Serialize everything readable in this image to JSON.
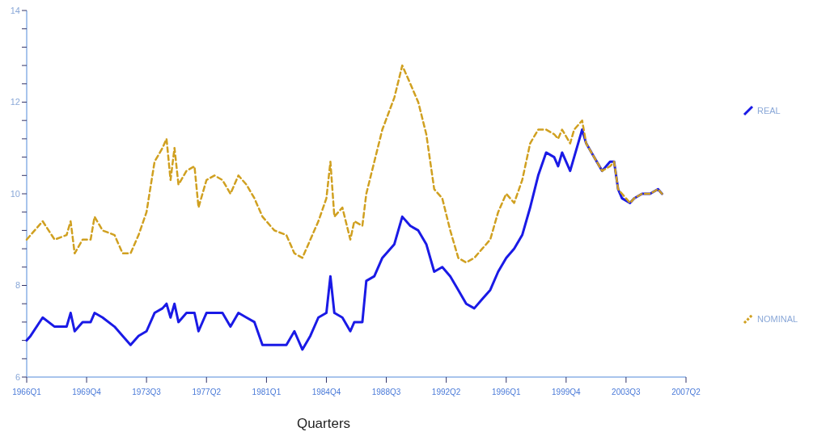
{
  "chart_data": {
    "type": "line",
    "xlabel": "Quarters",
    "x": [
      "1966-01",
      "1966-04",
      "1967-01",
      "1967-10",
      "1968-07",
      "1968-10",
      "1969-01",
      "1969-07",
      "1970-01",
      "1970-04",
      "1970-10",
      "1971-07",
      "1972-01",
      "1972-07",
      "1973-01",
      "1973-07",
      "1974-01",
      "1974-07",
      "1974-10",
      "1975-01",
      "1975-04",
      "1975-07",
      "1976-01",
      "1976-07",
      "1976-10",
      "1977-04",
      "1977-10",
      "1978-04",
      "1978-10",
      "1979-04",
      "1979-10",
      "1980-04",
      "1980-10",
      "1981-07",
      "1982-04",
      "1982-10",
      "1983-04",
      "1983-10",
      "1984-04",
      "1984-10",
      "1985-01",
      "1985-04",
      "1985-10",
      "1986-04",
      "1986-07",
      "1987-01",
      "1987-04",
      "1987-10",
      "1988-04",
      "1989-01",
      "1989-07",
      "1990-01",
      "1990-07",
      "1991-01",
      "1991-07",
      "1992-01",
      "1992-07",
      "1993-01",
      "1993-07",
      "1994-01",
      "1994-07",
      "1995-01",
      "1995-07",
      "1996-01",
      "1996-07",
      "1997-01",
      "1997-07",
      "1998-01",
      "1998-07",
      "1999-01",
      "1999-04",
      "1999-07",
      "2000-01",
      "2000-04",
      "2000-10",
      "2001-01",
      "2001-07",
      "2002-01",
      "2002-07",
      "2002-10",
      "2003-01",
      "2003-04",
      "2003-10",
      "2004-01",
      "2004-07",
      "2005-01",
      "2005-07",
      "2005-10"
    ],
    "series": [
      {
        "name": "REAL",
        "color": "#1a1ae6",
        "line_style": "solid",
        "values": [
          6.8,
          6.9,
          7.3,
          7.1,
          7.1,
          7.4,
          7.0,
          7.2,
          7.2,
          7.4,
          7.3,
          7.1,
          6.9,
          6.7,
          6.9,
          7.0,
          7.4,
          7.5,
          7.6,
          7.3,
          7.6,
          7.2,
          7.4,
          7.4,
          7.0,
          7.4,
          7.4,
          7.4,
          7.1,
          7.4,
          7.3,
          7.2,
          6.7,
          6.7,
          6.7,
          7.0,
          6.6,
          6.9,
          7.3,
          7.4,
          8.2,
          7.4,
          7.3,
          7.0,
          7.2,
          7.2,
          8.1,
          8.2,
          8.6,
          8.9,
          9.5,
          9.3,
          9.2,
          8.9,
          8.3,
          8.4,
          8.2,
          7.9,
          7.6,
          7.5,
          7.7,
          7.9,
          8.3,
          8.6,
          8.8,
          9.1,
          9.7,
          10.4,
          10.9,
          10.8,
          10.6,
          10.9,
          10.5,
          10.8,
          11.4,
          11.1,
          10.8,
          10.5,
          10.7,
          10.7,
          10.1,
          9.9,
          9.8,
          9.9,
          10.0,
          10.0,
          10.1,
          10.0
        ]
      },
      {
        "name": "NOMINAL",
        "color": "#d0a020",
        "line_style": "dashed",
        "values": [
          9.0,
          9.1,
          9.4,
          9.0,
          9.1,
          9.4,
          8.7,
          9.0,
          9.0,
          9.5,
          9.2,
          9.1,
          8.7,
          8.7,
          9.1,
          9.6,
          10.7,
          11.0,
          11.2,
          10.3,
          11.0,
          10.2,
          10.5,
          10.6,
          9.7,
          10.3,
          10.4,
          10.3,
          10.0,
          10.4,
          10.2,
          9.9,
          9.5,
          9.2,
          9.1,
          8.7,
          8.6,
          9.0,
          9.4,
          9.9,
          10.7,
          9.5,
          9.7,
          9.0,
          9.4,
          9.3,
          10.0,
          10.7,
          11.4,
          12.1,
          12.8,
          12.4,
          12.0,
          11.3,
          10.1,
          9.9,
          9.2,
          8.6,
          8.5,
          8.6,
          8.8,
          9.0,
          9.6,
          10.0,
          9.8,
          10.3,
          11.1,
          11.4,
          11.4,
          11.3,
          11.2,
          11.4,
          11.1,
          11.4,
          11.6,
          11.1,
          10.8,
          10.5,
          10.6,
          10.7,
          10.1,
          10.0,
          9.8,
          9.9,
          10.0,
          10.0,
          10.1,
          10.0
        ]
      }
    ],
    "xlim": [
      "1966-01",
      "2007-04"
    ],
    "xticks": [
      {
        "value": "1966-01",
        "label": "1966Q1"
      },
      {
        "value": "1969-10",
        "label": "1969Q4"
      },
      {
        "value": "1973-07",
        "label": "1973Q3"
      },
      {
        "value": "1977-04",
        "label": "1977Q2"
      },
      {
        "value": "1981-01",
        "label": "1981Q1"
      },
      {
        "value": "1984-10",
        "label": "1984Q4"
      },
      {
        "value": "1988-07",
        "label": "1988Q3"
      },
      {
        "value": "1992-04",
        "label": "1992Q2"
      },
      {
        "value": "1996-01",
        "label": "1996Q1"
      },
      {
        "value": "1999-10",
        "label": "1999Q4"
      },
      {
        "value": "2003-07",
        "label": "2003Q3"
      },
      {
        "value": "2007-04",
        "label": "2007Q2"
      }
    ],
    "ylim": [
      6,
      14
    ],
    "yticks": [
      6,
      {
        "value": 6.4,
        "label": null
      },
      {
        "value": 6.8,
        "label": null
      },
      {
        "value": 7.2,
        "label": null
      },
      {
        "value": 7.6,
        "label": null
      },
      8,
      {
        "value": 8.4,
        "label": null
      },
      {
        "value": 8.8,
        "label": null
      },
      {
        "value": 9.2,
        "label": null
      },
      {
        "value": 9.6,
        "label": null
      },
      10,
      {
        "value": 10.4,
        "label": null
      },
      {
        "value": 10.8,
        "label": null
      },
      {
        "value": 11.2,
        "label": null
      },
      {
        "value": 11.6,
        "label": null
      },
      12,
      {
        "value": 12.4,
        "label": null
      },
      {
        "value": 12.8,
        "label": null
      },
      {
        "value": 13.2,
        "label": null
      },
      {
        "value": 13.6,
        "label": null
      },
      14
    ],
    "grid": false,
    "legend": "right"
  }
}
